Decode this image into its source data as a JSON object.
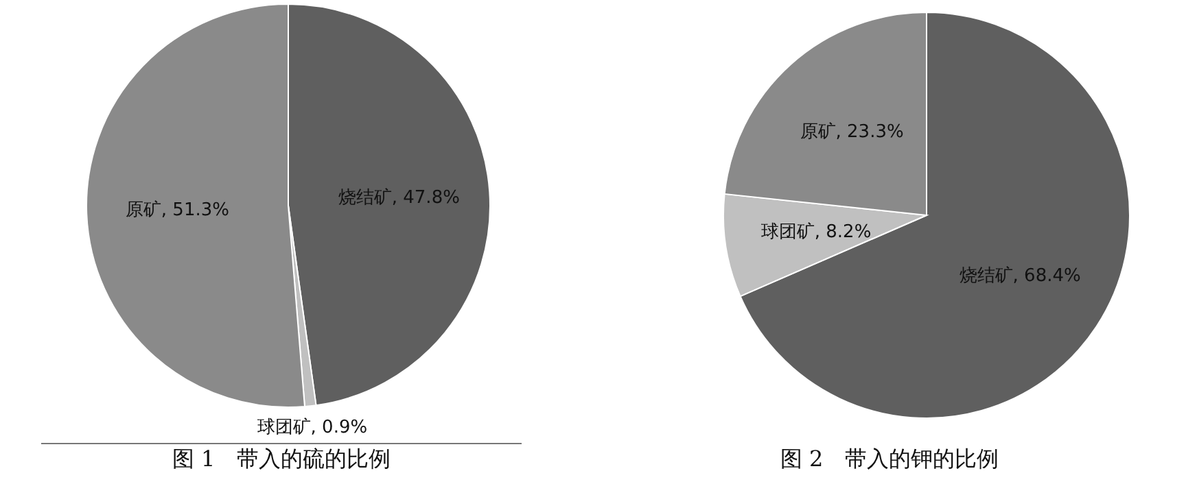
{
  "chart_data": [
    {
      "type": "pie",
      "title": "图 1　带入的硫的比例",
      "categories": [
        "烧结矿",
        "球团矿",
        "原矿"
      ],
      "values": [
        47.8,
        0.9,
        51.3
      ],
      "value_labels": [
        "47.8%",
        "0.9%",
        "51.3%"
      ],
      "colors": [
        "#5f5f5f",
        "#c0c0c0",
        "#8a8a8a"
      ],
      "legend": false
    },
    {
      "type": "pie",
      "title": "图 2　带入的钾的比例",
      "categories": [
        "烧结矿",
        "球团矿",
        "原矿"
      ],
      "values": [
        68.4,
        8.2,
        23.3
      ],
      "value_labels": [
        "68.4%",
        "8.2%",
        "23.3%"
      ],
      "colors": [
        "#5f5f5f",
        "#c0c0c0",
        "#8a8a8a"
      ],
      "legend": false
    }
  ]
}
